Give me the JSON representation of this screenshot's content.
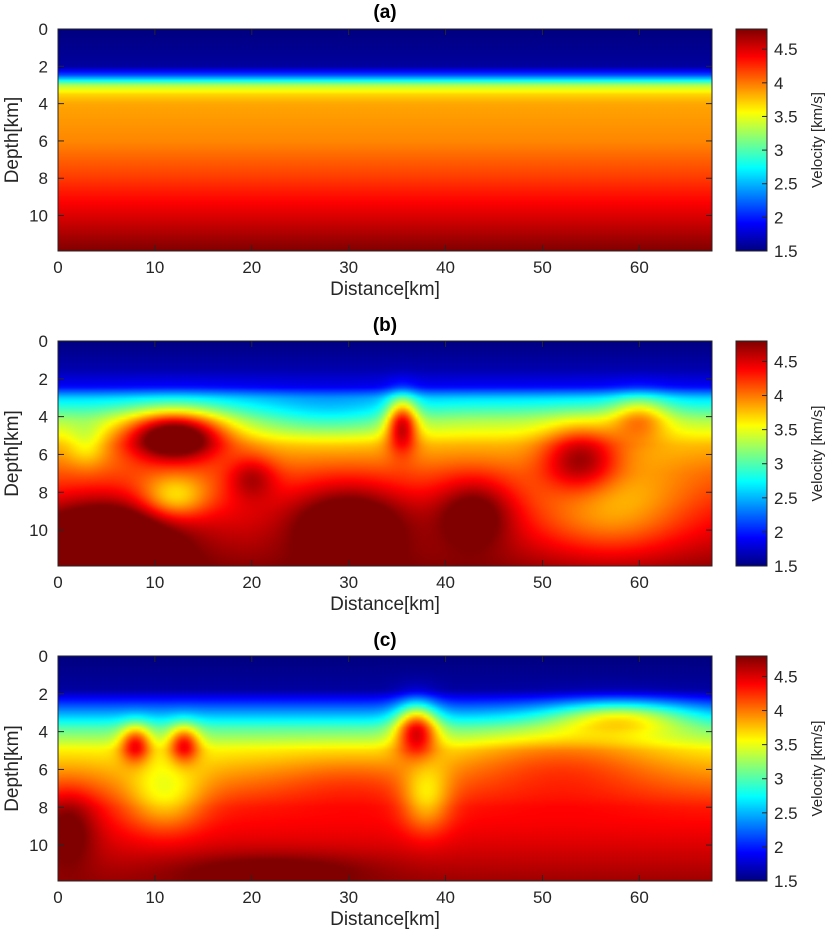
{
  "chart_data": [
    {
      "type": "heatmap",
      "title": "(a)",
      "xlabel": "Distance[km]",
      "ylabel": "Depth[km]",
      "xlim": [
        0,
        67.5
      ],
      "ylim": [
        0,
        11.9
      ],
      "y_reversed": true,
      "xticks": [
        "0",
        "10",
        "20",
        "30",
        "40",
        "50",
        "60"
      ],
      "yticks": [
        "0",
        "2",
        "4",
        "6",
        "8",
        "10"
      ],
      "colorbar": {
        "label": "Velocity [km/s]",
        "ticks": [
          "1.5",
          "2",
          "2.5",
          "3",
          "3.5",
          "4",
          "4.5"
        ],
        "range": [
          1.5,
          4.8
        ],
        "colormap": "jet"
      },
      "field": {
        "model": "layered",
        "depth_profile": [
          [
            0,
            1.5
          ],
          [
            2.0,
            1.6
          ],
          [
            2.5,
            2.2
          ],
          [
            3.0,
            3.3
          ],
          [
            3.5,
            3.7
          ],
          [
            4.0,
            3.85
          ],
          [
            6.0,
            3.95
          ],
          [
            8.0,
            4.2
          ],
          [
            10.0,
            4.5
          ],
          [
            11.9,
            4.8
          ]
        ]
      }
    },
    {
      "type": "heatmap",
      "title": "(b)",
      "xlabel": "Distance[km]",
      "ylabel": "Depth[km]",
      "xlim": [
        0,
        67.5
      ],
      "ylim": [
        0,
        11.9
      ],
      "y_reversed": true,
      "xticks": [
        "0",
        "10",
        "20",
        "30",
        "40",
        "50",
        "60"
      ],
      "yticks": [
        "0",
        "2",
        "4",
        "6",
        "8",
        "10"
      ],
      "colorbar": {
        "label": "Velocity [km/s]",
        "ticks": [
          "1.5",
          "2",
          "2.5",
          "3",
          "3.5",
          "4",
          "4.5"
        ],
        "range": [
          1.5,
          4.8
        ],
        "colormap": "jet"
      },
      "field": {
        "model": "anomalies",
        "background_profile": [
          [
            0,
            1.5
          ],
          [
            1.5,
            1.65
          ],
          [
            2.4,
            1.9
          ],
          [
            3.0,
            2.6
          ],
          [
            4.2,
            3.3
          ],
          [
            5.5,
            3.8
          ],
          [
            7.0,
            4.1
          ],
          [
            9.0,
            4.4
          ],
          [
            11.9,
            4.75
          ]
        ],
        "anomalies": [
          {
            "x": 12,
            "z": 5.0,
            "rx": 5,
            "rz": 1.3,
            "amp": 1.6
          },
          {
            "x": 12,
            "z": 8.3,
            "rx": 3.5,
            "rz": 1.2,
            "amp": -0.7
          },
          {
            "x": 5,
            "z": 10.5,
            "rx": 7,
            "rz": 2.0,
            "amp": 1.0
          },
          {
            "x": 20,
            "z": 7.2,
            "rx": 2.5,
            "rz": 1.2,
            "amp": 0.5
          },
          {
            "x": 30,
            "z": 9.5,
            "rx": 6,
            "rz": 2.0,
            "amp": 0.7
          },
          {
            "x": 35.5,
            "z": 4.3,
            "rx": 1.6,
            "rz": 1.4,
            "amp": 1.3
          },
          {
            "x": 43,
            "z": 9.0,
            "rx": 4,
            "rz": 1.8,
            "amp": 0.6
          },
          {
            "x": 54,
            "z": 6.2,
            "rx": 4,
            "rz": 1.8,
            "amp": 0.9
          },
          {
            "x": 60,
            "z": 4.0,
            "rx": 3,
            "rz": 1.2,
            "amp": 0.7
          },
          {
            "x": 57,
            "z": 9.0,
            "rx": 8,
            "rz": 2.5,
            "amp": -0.6
          },
          {
            "x": 28,
            "z": 4.0,
            "rx": 8,
            "rz": 1.2,
            "amp": -0.4
          },
          {
            "x": 3,
            "z": 5.5,
            "rx": 2,
            "rz": 1.2,
            "amp": -0.3
          }
        ]
      }
    },
    {
      "type": "heatmap",
      "title": "(c)",
      "xlabel": "Distance[km]",
      "ylabel": "Depth[km]",
      "xlim": [
        0,
        67.5
      ],
      "ylim": [
        0,
        11.9
      ],
      "y_reversed": true,
      "xticks": [
        "0",
        "10",
        "20",
        "30",
        "40",
        "50",
        "60"
      ],
      "yticks": [
        "0",
        "2",
        "4",
        "6",
        "8",
        "10"
      ],
      "colorbar": {
        "label": "Velocity [km/s]",
        "ticks": [
          "1.5",
          "2",
          "2.5",
          "3",
          "3.5",
          "4",
          "4.5"
        ],
        "range": [
          1.5,
          4.8
        ],
        "colormap": "jet"
      },
      "field": {
        "model": "anomalies",
        "background_profile": [
          [
            0,
            1.5
          ],
          [
            1.8,
            1.6
          ],
          [
            2.8,
            2.3
          ],
          [
            3.8,
            3.0
          ],
          [
            5.0,
            3.6
          ],
          [
            6.5,
            3.95
          ],
          [
            8.0,
            4.3
          ],
          [
            10.0,
            4.5
          ],
          [
            11.9,
            4.7
          ]
        ],
        "anomalies": [
          {
            "x": 8,
            "z": 4.6,
            "rx": 1.6,
            "rz": 1.0,
            "amp": 1.0
          },
          {
            "x": 13,
            "z": 4.6,
            "rx": 1.6,
            "rz": 1.0,
            "amp": 1.0
          },
          {
            "x": 11,
            "z": 7.5,
            "rx": 4,
            "rz": 1.8,
            "amp": -0.6
          },
          {
            "x": 1,
            "z": 9.0,
            "rx": 3,
            "rz": 2.0,
            "amp": 0.5
          },
          {
            "x": 37,
            "z": 3.8,
            "rx": 2.2,
            "rz": 1.4,
            "amp": 1.4
          },
          {
            "x": 38,
            "z": 7.5,
            "rx": 2.5,
            "rz": 1.8,
            "amp": -0.6
          },
          {
            "x": 58,
            "z": 3.2,
            "rx": 7,
            "rz": 0.9,
            "amp": 0.9
          },
          {
            "x": 52,
            "z": 5.5,
            "rx": 10,
            "rz": 2.0,
            "amp": 0.4
          },
          {
            "x": 22,
            "z": 11.3,
            "rx": 10,
            "rz": 0.9,
            "amp": 0.3
          },
          {
            "x": 30,
            "z": 6.5,
            "rx": 8,
            "rz": 1.5,
            "amp": 0.2
          }
        ]
      }
    }
  ]
}
